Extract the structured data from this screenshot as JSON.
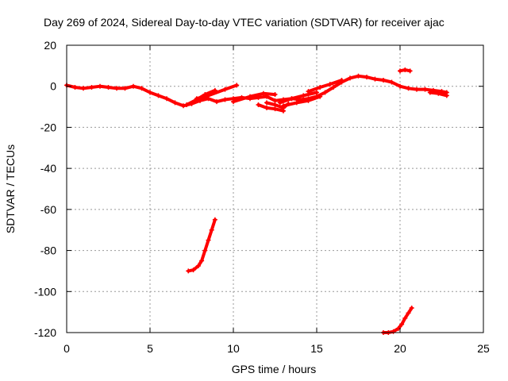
{
  "chart_data": {
    "type": "scatter",
    "title": "Day 269 of 2024, Sidereal Day-to-day VTEC variation (SDTVAR) for receiver ajac",
    "xlabel": "GPS time / hours",
    "ylabel": "SDTVAR / TECUs",
    "xlim": [
      0,
      25
    ],
    "ylim": [
      -120,
      20
    ],
    "xticks": [
      0,
      5,
      10,
      15,
      20,
      25
    ],
    "yticks": [
      20,
      0,
      -20,
      -40,
      -60,
      -80,
      -100,
      -120
    ],
    "grid": true,
    "legend": "none",
    "series": [
      {
        "color": "#ff0000",
        "segments": [
          [
            [
              0.0,
              0.5
            ],
            [
              0.5,
              -0.5
            ],
            [
              1.0,
              -1.0
            ],
            [
              1.5,
              -0.5
            ],
            [
              2.0,
              0.0
            ],
            [
              2.5,
              -0.5
            ],
            [
              3.0,
              -1.0
            ],
            [
              3.5,
              -1.0
            ],
            [
              4.0,
              0.0
            ],
            [
              4.5,
              -1.0
            ],
            [
              5.0,
              -3.0
            ],
            [
              5.5,
              -4.5
            ],
            [
              6.0,
              -6.0
            ],
            [
              6.5,
              -8.0
            ],
            [
              7.0,
              -9.5
            ],
            [
              7.5,
              -8.5
            ],
            [
              8.0,
              -7.0
            ],
            [
              8.5,
              -6.0
            ],
            [
              9.0,
              -7.5
            ],
            [
              9.5,
              -6.5
            ],
            [
              10.0,
              -6.0
            ],
            [
              10.5,
              -5.5
            ],
            [
              11.0,
              -6.0
            ],
            [
              11.5,
              -5.5
            ],
            [
              12.0,
              -5.0
            ],
            [
              12.5,
              -7.0
            ],
            [
              13.0,
              -6.5
            ],
            [
              13.5,
              -6.0
            ],
            [
              14.0,
              -6.5
            ],
            [
              14.5,
              -6.0
            ],
            [
              15.0,
              -5.0
            ],
            [
              15.5,
              -3.0
            ],
            [
              16.0,
              -0.5
            ],
            [
              16.5,
              2.0
            ],
            [
              17.0,
              4.0
            ],
            [
              17.5,
              5.0
            ],
            [
              18.0,
              4.5
            ],
            [
              18.5,
              3.5
            ],
            [
              19.0,
              3.0
            ],
            [
              19.5,
              2.0
            ],
            [
              20.0,
              0.0
            ],
            [
              20.5,
              -1.0
            ],
            [
              21.0,
              -1.5
            ],
            [
              21.5,
              -1.5
            ],
            [
              22.0,
              -2.0
            ],
            [
              22.5,
              -2.5
            ],
            [
              22.8,
              -3.0
            ]
          ],
          [
            [
              7.2,
              -9.0
            ],
            [
              7.8,
              -6.5
            ],
            [
              8.3,
              -4.0
            ],
            [
              8.9,
              -2.0
            ]
          ],
          [
            [
              7.8,
              -6.0
            ],
            [
              8.5,
              -4.5
            ],
            [
              9.5,
              -1.5
            ],
            [
              10.2,
              0.5
            ]
          ],
          [
            [
              10.0,
              -7.5
            ],
            [
              11.0,
              -5.0
            ],
            [
              11.8,
              -3.5
            ],
            [
              12.5,
              -4.0
            ]
          ],
          [
            [
              11.5,
              -9.0
            ],
            [
              12.0,
              -10.5
            ],
            [
              12.5,
              -11.0
            ],
            [
              13.0,
              -12.0
            ]
          ],
          [
            [
              12.0,
              -8.0
            ],
            [
              12.5,
              -9.0
            ],
            [
              13.0,
              -10.5
            ],
            [
              13.3,
              -8.5
            ]
          ],
          [
            [
              12.8,
              -8.0
            ],
            [
              13.5,
              -6.0
            ],
            [
              14.2,
              -4.5
            ],
            [
              15.0,
              -3.0
            ]
          ],
          [
            [
              13.0,
              -9.5
            ],
            [
              13.8,
              -8.0
            ],
            [
              14.5,
              -7.0
            ],
            [
              15.2,
              -5.0
            ]
          ],
          [
            [
              14.5,
              -2.5
            ],
            [
              15.2,
              -0.5
            ],
            [
              15.8,
              1.0
            ],
            [
              16.5,
              3.0
            ]
          ],
          [
            [
              20.0,
              7.5
            ],
            [
              20.3,
              8.0
            ],
            [
              20.6,
              7.5
            ]
          ],
          [
            [
              21.8,
              -3.0
            ],
            [
              22.3,
              -3.5
            ],
            [
              22.8,
              -4.5
            ]
          ]
        ]
      },
      {
        "color": "#ff0000",
        "segments": [
          [
            [
              7.3,
              -90.0
            ],
            [
              7.6,
              -89.5
            ],
            [
              7.9,
              -87.5
            ],
            [
              8.1,
              -85.0
            ],
            [
              8.3,
              -80.0
            ],
            [
              8.5,
              -75.0
            ],
            [
              8.7,
              -70.0
            ],
            [
              8.9,
              -65.0
            ]
          ]
        ]
      },
      {
        "color": "#ff0000",
        "segments": [
          [
            [
              19.0,
              -120.0
            ],
            [
              19.3,
              -120.0
            ],
            [
              19.6,
              -119.5
            ],
            [
              19.9,
              -118.0
            ],
            [
              20.1,
              -116.0
            ],
            [
              20.3,
              -113.0
            ],
            [
              20.5,
              -110.5
            ],
            [
              20.7,
              -108.0
            ]
          ]
        ]
      }
    ]
  }
}
